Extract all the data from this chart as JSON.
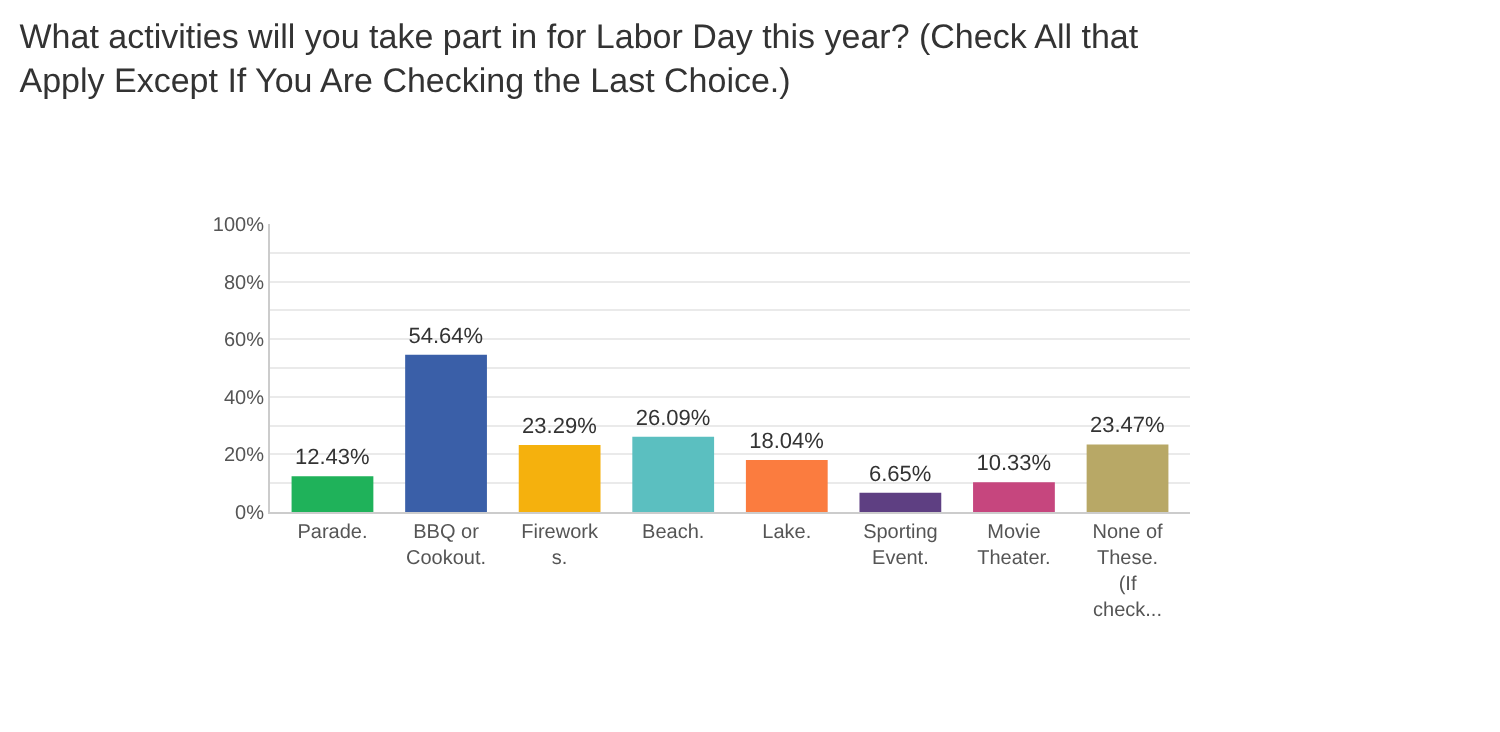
{
  "chart_data": {
    "type": "bar",
    "title": "What activities will you take part in for Labor Day this year? (Check All that Apply Except If You Are Checking the Last Choice.)",
    "categories": [
      "Parade.",
      "BBQ or\nCookout.",
      "Firework\ns.",
      "Beach.",
      "Lake.",
      "Sporting\nEvent.",
      "Movie\nTheater.",
      "None of\nThese.\n(If\ncheck..."
    ],
    "values": [
      12.43,
      54.64,
      23.29,
      26.09,
      18.04,
      6.65,
      10.33,
      23.47
    ],
    "colors": [
      "#1fb25a",
      "#3a5fa8",
      "#f5b10d",
      "#5bbfc0",
      "#fb7c3f",
      "#5e3f82",
      "#c6467e",
      "#b8a866"
    ],
    "value_labels": [
      "12.43%",
      "54.64%",
      "23.29%",
      "26.09%",
      "18.04%",
      "6.65%",
      "10.33%",
      "23.47%"
    ],
    "ylim": [
      0,
      100
    ],
    "yticks": [
      {
        "value": 0,
        "label": "0%"
      },
      {
        "value": 10,
        "label": null
      },
      {
        "value": 20,
        "label": "20%"
      },
      {
        "value": 30,
        "label": null
      },
      {
        "value": 40,
        "label": "40%"
      },
      {
        "value": 50,
        "label": null
      },
      {
        "value": 60,
        "label": "60%"
      },
      {
        "value": 70,
        "label": null
      },
      {
        "value": 80,
        "label": "80%"
      },
      {
        "value": 90,
        "label": null
      },
      {
        "value": 100,
        "label": "100%"
      }
    ],
    "grid": "y"
  }
}
